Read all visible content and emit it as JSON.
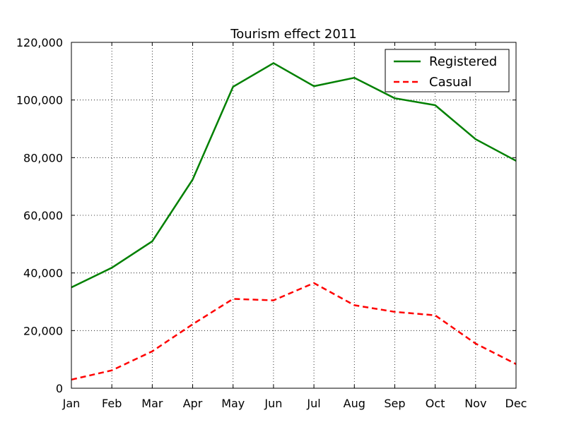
{
  "chart_data": {
    "type": "line",
    "title": "Tourism effect 2011",
    "xlabel": "",
    "ylabel": "",
    "categories": [
      "Jan",
      "Feb",
      "Mar",
      "Apr",
      "May",
      "Jun",
      "Jul",
      "Aug",
      "Sep",
      "Oct",
      "Nov",
      "Dec"
    ],
    "ylim": [
      0,
      120000
    ],
    "yticks": [
      0,
      20000,
      40000,
      60000,
      80000,
      100000,
      120000
    ],
    "ytick_labels": [
      "0",
      "20,000",
      "40,000",
      "60,000",
      "80,000",
      "100,000",
      "120,000"
    ],
    "grid": true,
    "legend_position": "top-right",
    "series": [
      {
        "name": "Registered",
        "color": "#008000",
        "style": "solid",
        "values": [
          35000,
          41800,
          51000,
          72400,
          104600,
          112800,
          104800,
          107700,
          100600,
          98200,
          86400,
          78900
        ]
      },
      {
        "name": "Casual",
        "color": "#ff0000",
        "style": "dashed",
        "values": [
          3000,
          6200,
          12800,
          22200,
          31000,
          30500,
          36500,
          28800,
          26500,
          25300,
          15500,
          8400
        ]
      }
    ]
  }
}
